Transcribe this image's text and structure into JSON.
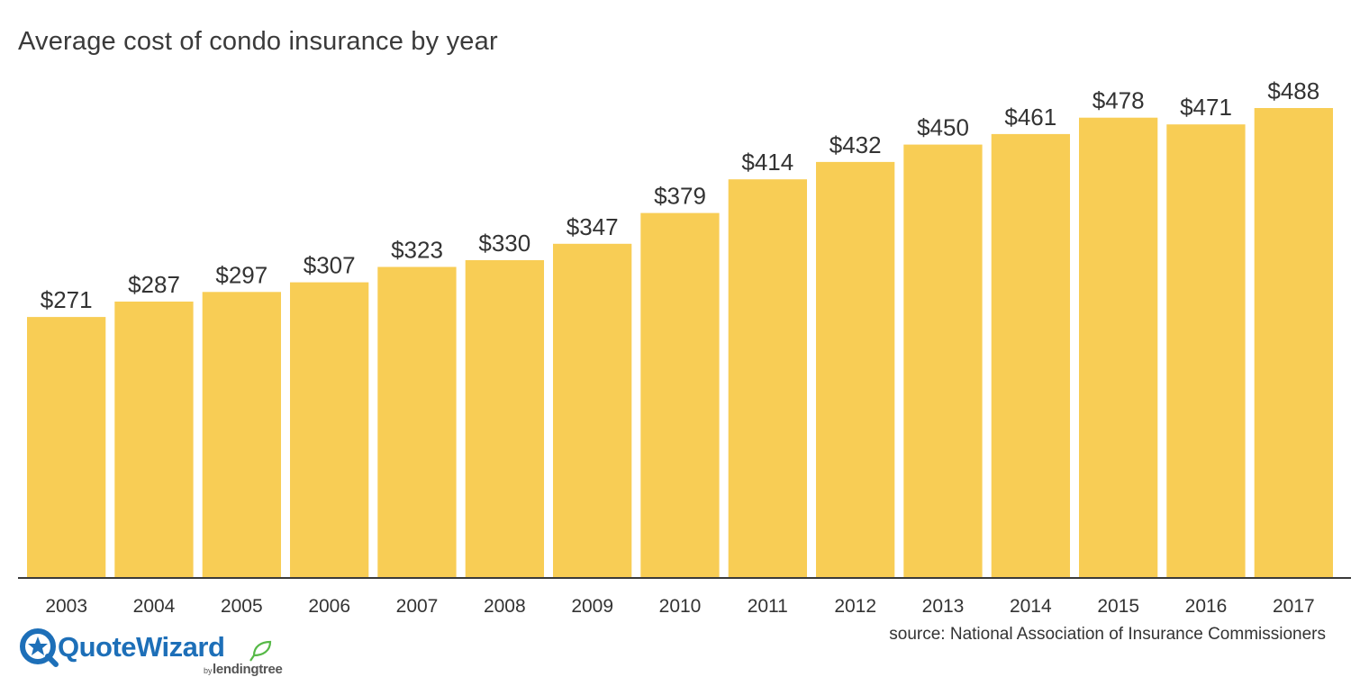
{
  "title": "Average cost of condo insurance by year",
  "source": "source: National Association of Insurance Commissioners",
  "logo": {
    "name": "QuoteWizard",
    "byline": "by",
    "partner": "lendingtree",
    "icon": "quotewizard-star-icon"
  },
  "colors": {
    "bar": "#f8cd55",
    "axis": "#3a3a3a",
    "text": "#333333",
    "brand_blue": "#1d6fb8",
    "brand_green": "#56b947"
  },
  "chart_data": {
    "type": "bar",
    "categories": [
      "2003",
      "2004",
      "2005",
      "2006",
      "2007",
      "2008",
      "2009",
      "2010",
      "2011",
      "2012",
      "2013",
      "2014",
      "2015",
      "2016",
      "2017"
    ],
    "values": [
      271,
      287,
      297,
      307,
      323,
      330,
      347,
      379,
      414,
      432,
      450,
      461,
      478,
      471,
      488
    ],
    "value_labels": [
      "$271",
      "$287",
      "$297",
      "$307",
      "$323",
      "$330",
      "$347",
      "$379",
      "$414",
      "$432",
      "$450",
      "$461",
      "$478",
      "$471",
      "$488"
    ],
    "title": "Average cost of condo insurance by year",
    "xlabel": "",
    "ylabel": "",
    "ylim": [
      0,
      488
    ],
    "grid": false,
    "legend": "none"
  }
}
